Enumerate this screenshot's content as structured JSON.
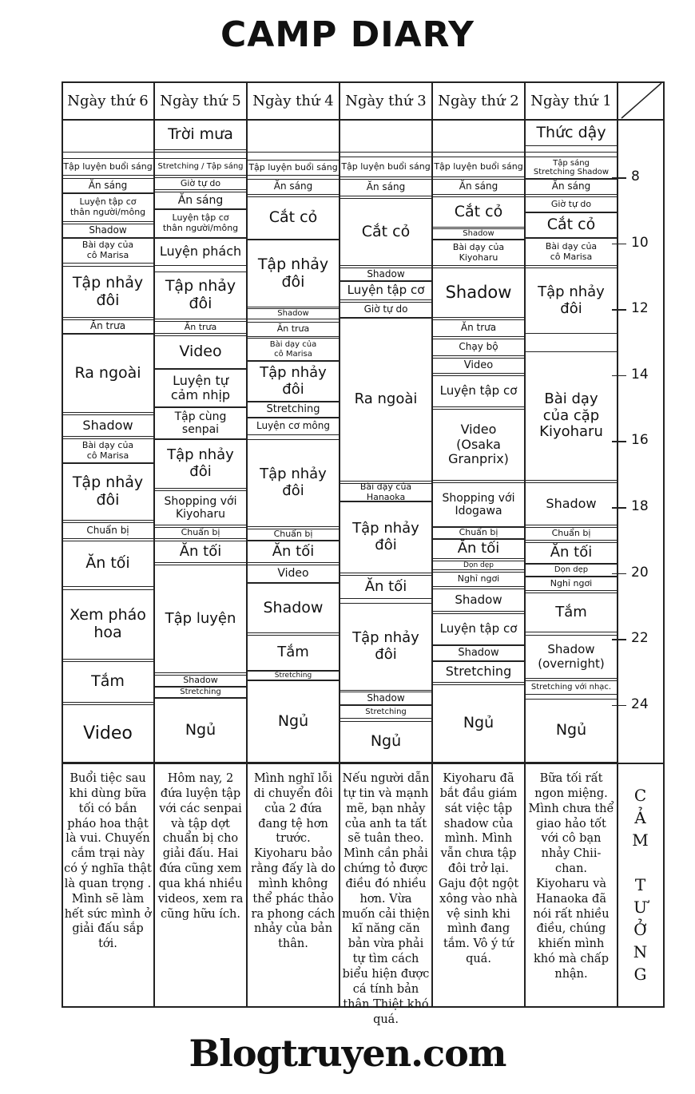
{
  "title": "CAMP DIARY",
  "table": {
    "headers": [
      "Ngày thứ 6",
      "Ngày thứ 5",
      "Ngày thứ 4",
      "Ngày thứ 3",
      "Ngày thứ 2",
      "Ngày thứ 1"
    ],
    "columns": [
      {
        "events": [
          "Tập luyện buổi sáng",
          "Ăn sáng",
          "Luyện tập cơ\nthân người/mông",
          "Shadow",
          "Bài dạy của\ncô Marisa",
          "Tập nhảy\nđôi",
          "Ăn trưa",
          "Ra ngoài",
          "Shadow",
          "Bài dạy của\ncô Marisa",
          "Tập nhảy\nđôi",
          "Chuẩn bị",
          "Ăn tối",
          "Xem pháo\nhoa",
          "Tắm",
          "Video"
        ]
      },
      {
        "events": [
          "Trời mưa",
          "Stretching / Tập sáng",
          "Giờ tự do",
          "Ăn sáng",
          "Luyện tập cơ\nthân người/mông",
          "Luyện phách",
          "Tập nhảy\nđôi",
          "Ăn trưa",
          "Video",
          "Luyện tự\ncảm nhịp",
          "Tập cùng\nsenpai",
          "Tập nhảy\nđôi",
          "Shopping với\nKiyoharu",
          "Chuẩn bị",
          "Ăn tối",
          "Tập luyện",
          "Shadow",
          "Stretching",
          "Ngủ"
        ]
      },
      {
        "events": [
          "Tập luyện buổi sáng",
          "Ăn sáng",
          "Cắt cỏ",
          "Tập nhảy\nđôi",
          "Shadow",
          "Ăn trưa",
          "Bài dạy của\ncô Marisa",
          "Tập nhảy\nđôi",
          "Stretching",
          "Luyện cơ mông",
          "Tập nhảy\nđôi",
          "Chuẩn bị",
          "Ăn tối",
          "Video",
          "Shadow",
          "Tắm",
          "Stretching",
          "Ngủ"
        ]
      },
      {
        "events": [
          "Tập luyện buổi sáng",
          "Ăn sáng",
          "Cắt cỏ",
          "Shadow",
          "Luyện tập cơ",
          "Giờ tự do",
          "Ra ngoài",
          "Bài dạy của Hanaoka",
          "Tập nhảy\nđôi",
          "Ăn tối",
          "Tập nhảy\nđôi",
          "Shadow",
          "Stretching",
          "Ngủ"
        ]
      },
      {
        "events": [
          "Tập luyện buổi sáng",
          "Ăn sáng",
          "Cắt cỏ",
          "Shadow",
          "Bài dạy của\nKiyoharu",
          "Shadow",
          "Ăn trưa",
          "Chạy bộ",
          "Video",
          "Luyện tập cơ",
          "Video\n(Osaka\nGranprix)",
          "Shopping với\nIdogawa",
          "Chuẩn bị",
          "Ăn tối",
          "Dọn dẹp",
          "Nghỉ ngơi",
          "Shadow",
          "Luyện tập cơ",
          "Shadow",
          "Stretching",
          "Ngủ"
        ]
      },
      {
        "events": [
          "Thức dậy",
          "Tập sáng\nStretching Shadow",
          "Ăn sáng",
          "Giờ tự do",
          "Cắt cỏ",
          "Bài dạy của\ncô Marisa",
          "Tập nhảy\nđôi",
          "Bài dạy\ncủa cặp\nKiyoharu",
          "Shadow",
          "Chuẩn bị",
          "Ăn tối",
          "Dọn dẹp",
          "Nghỉ ngơi",
          "Tắm",
          "Shadow\n(overnight)",
          "Stretching với nhạc.",
          "Ngủ"
        ]
      }
    ],
    "hours": [
      8,
      10,
      12,
      14,
      16,
      18,
      20,
      22,
      24
    ],
    "impressions": [
      "Buổi tiệc sau khi dùng bữa tối có bắn pháo hoa thật là vui. Chuyến cắm trại này có ý nghĩa thật là quan trọng . Mình sẽ làm hết sức mình ở giải đấu sắp tới.",
      "Hôm nay, 2 đứa luyện tập với các senpai và tập dợt chuẩn bị cho giải đấu. Hai đứa cũng xem qua khá nhiều videos, xem ra cũng hữu ích.",
      "Mình nghĩ lỗi di chuyển đôi của 2 đứa đang tệ hơn trước. Kiyoharu bảo rằng đấy là do mình không thể phác thảo ra phong cách nhảy của bản thân.",
      "Nếu người dẫn tự tin và mạnh mẽ, bạn nhảy của anh ta tất sẽ tuân theo. Mình cần phải chứng tỏ được điều đó nhiều hơn. Vừa muốn cải thiện kĩ năng căn bản vừa phải tự tìm cách biểu hiện được cá tính bản thân Thiệt khó quá.",
      "Kiyoharu đã bắt đầu giám sát việc tập shadow của mình. Mình vẫn chưa tập đôi trở lại. Gaju đột ngột xông vào nhà vệ sinh khi mình đang tắm. Vô ý tứ quá.",
      "Bữa tối rất ngon miệng. Mình chưa thể giao hảo tốt với cô bạn nhảy Chii-chan. Kiyoharu và Hanaoka đã nói rất nhiều điều, chúng khiến mình khó mà chấp nhận."
    ],
    "impressions_label": "CẢM TƯỞNG"
  },
  "footer": "Blogtruyen.com"
}
